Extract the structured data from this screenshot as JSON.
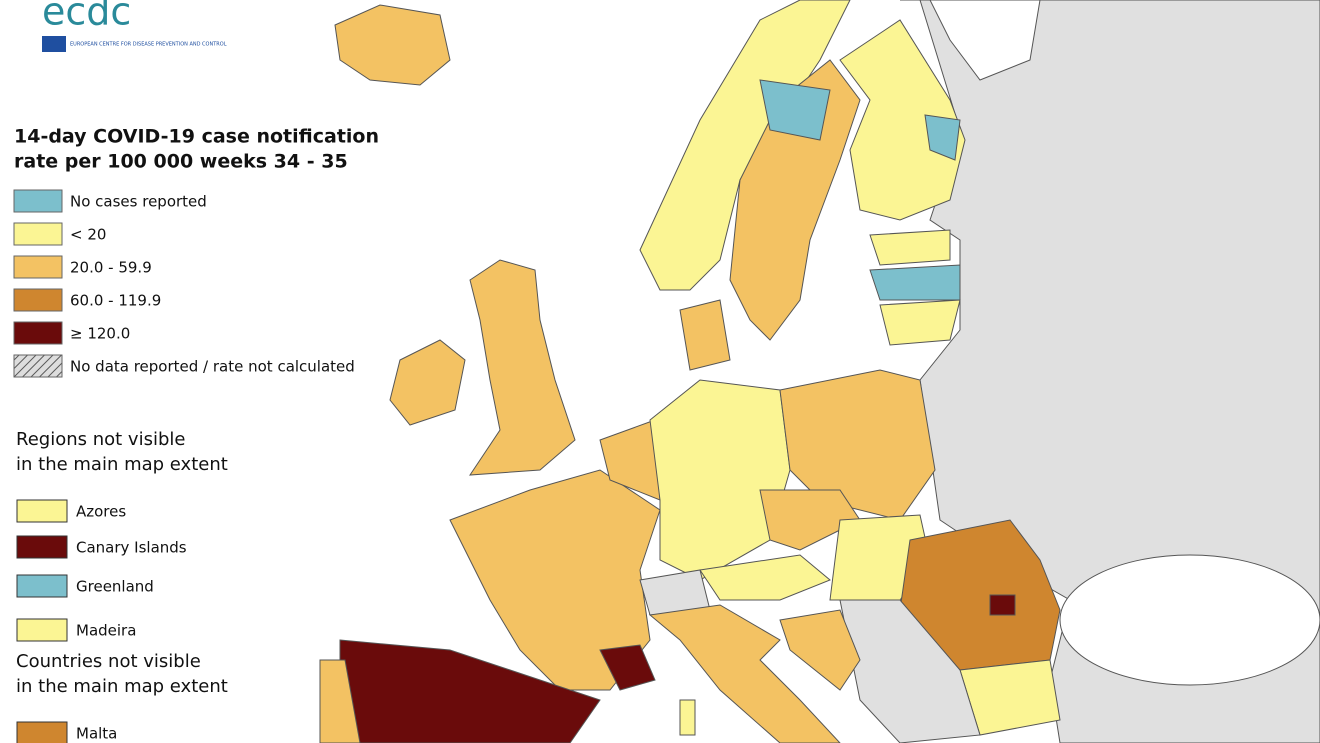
{
  "header": {
    "logo": "ecdc",
    "organisation": "EUROPEAN CENTRE FOR DISEASE PREVENTION AND CONTROL"
  },
  "legend": {
    "title": [
      "14-day COVID-19 case notification",
      "rate per 100 000 weeks 34 - 35"
    ],
    "items": [
      {
        "label": "No cases reported",
        "color": "#7cbfcc"
      },
      {
        "label": "< 20",
        "color": "#fbf594"
      },
      {
        "label": "20.0 - 59.9",
        "color": "#f3c263"
      },
      {
        "label": "60.0 - 119.9",
        "color": "#cf862f"
      },
      {
        "label": "≥ 120.0",
        "color": "#6a0b0b"
      },
      {
        "label": "No data reported / rate not calculated",
        "color": "hatch"
      }
    ]
  },
  "regions": {
    "title": [
      "Regions not visible",
      "in the main map extent"
    ],
    "items": [
      {
        "label": "Azores",
        "color": "#fbf594"
      },
      {
        "label": "Canary Islands",
        "color": "#6a0b0b"
      },
      {
        "label": "Greenland",
        "color": "#7cbfcc"
      },
      {
        "label": "Madeira",
        "color": "#fbf594"
      }
    ]
  },
  "countries": {
    "title": [
      "Countries not visible",
      "in the main map extent"
    ],
    "items": [
      {
        "label": "Malta",
        "color": "#cf862f"
      }
    ]
  }
}
